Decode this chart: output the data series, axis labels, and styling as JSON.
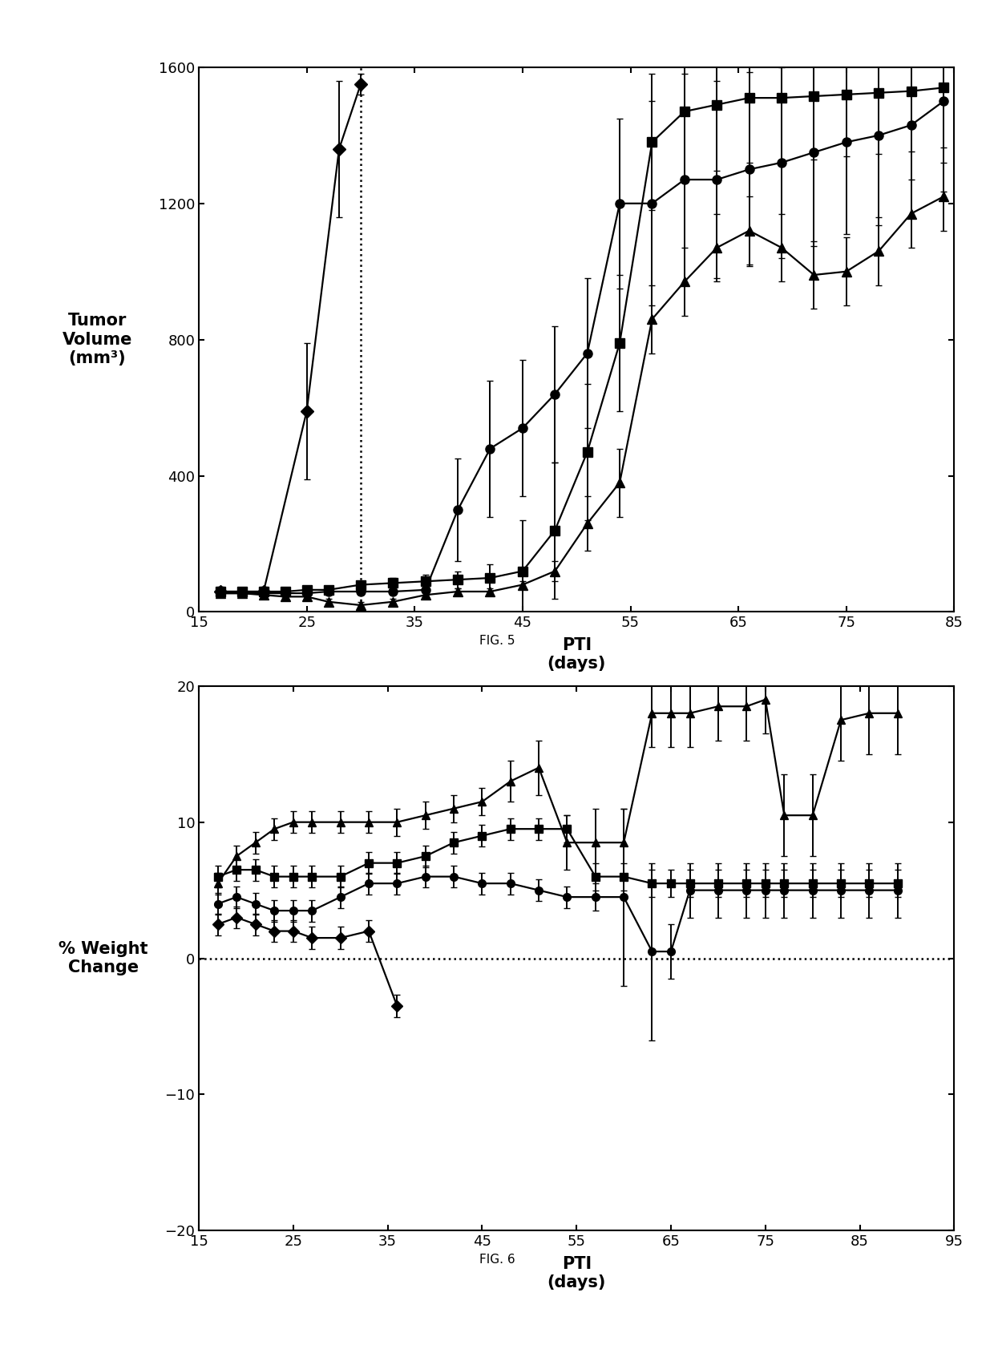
{
  "fig5": {
    "title": "FIG. 5",
    "xlabel": "PTI\n(days)",
    "ylabel": "Tumor\nVolume\n(mm³)",
    "xlim": [
      15,
      85
    ],
    "ylim": [
      0,
      1600
    ],
    "xticks": [
      15,
      25,
      35,
      45,
      55,
      65,
      75,
      85
    ],
    "yticks": [
      0,
      400,
      800,
      1200,
      1600
    ],
    "dotted_vline": 30,
    "series": {
      "diamond": {
        "x": [
          17,
          21,
          25,
          28,
          30
        ],
        "y": [
          60,
          60,
          590,
          1360,
          1550
        ],
        "yerr": [
          15,
          15,
          200,
          200,
          30
        ],
        "marker": "D",
        "ms": 8
      },
      "circle": {
        "x": [
          17,
          19,
          21,
          23,
          25,
          27,
          30,
          33,
          36,
          39,
          42,
          45,
          48,
          51,
          54,
          57,
          60,
          63,
          66,
          69,
          72,
          75,
          78,
          81,
          84
        ],
        "y": [
          55,
          55,
          55,
          55,
          55,
          60,
          60,
          60,
          65,
          300,
          480,
          540,
          640,
          760,
          1200,
          1200,
          1270,
          1270,
          1300,
          1320,
          1350,
          1380,
          1400,
          1430,
          1500
        ],
        "yerr": [
          10,
          10,
          10,
          10,
          10,
          10,
          10,
          10,
          10,
          150,
          200,
          200,
          200,
          220,
          250,
          300,
          310,
          290,
          285,
          280,
          275,
          270,
          265,
          265,
          265
        ],
        "marker": "o",
        "ms": 8
      },
      "square": {
        "x": [
          17,
          19,
          21,
          23,
          25,
          27,
          30,
          33,
          36,
          39,
          42,
          45,
          48,
          51,
          54,
          57,
          60,
          63,
          66,
          69,
          72,
          75,
          78,
          81,
          84
        ],
        "y": [
          60,
          60,
          60,
          60,
          65,
          65,
          80,
          85,
          90,
          95,
          100,
          120,
          240,
          470,
          790,
          1380,
          1470,
          1490,
          1510,
          1510,
          1515,
          1520,
          1525,
          1530,
          1540
        ],
        "yerr": [
          10,
          10,
          10,
          10,
          10,
          10,
          10,
          15,
          20,
          25,
          40,
          150,
          200,
          200,
          200,
          200,
          200,
          195,
          190,
          185,
          185,
          182,
          180,
          178,
          175
        ],
        "marker": "s",
        "ms": 8
      },
      "triangle": {
        "x": [
          17,
          19,
          21,
          23,
          25,
          27,
          30,
          33,
          36,
          39,
          42,
          45,
          48,
          51,
          54,
          57,
          60,
          63,
          66,
          69,
          72,
          75,
          78,
          81,
          84
        ],
        "y": [
          55,
          55,
          50,
          45,
          45,
          30,
          20,
          30,
          50,
          60,
          60,
          80,
          120,
          260,
          380,
          860,
          970,
          1070,
          1120,
          1070,
          990,
          1000,
          1060,
          1170,
          1220
        ],
        "yerr": [
          10,
          10,
          10,
          10,
          10,
          10,
          10,
          10,
          10,
          10,
          10,
          10,
          30,
          80,
          100,
          100,
          100,
          100,
          100,
          100,
          100,
          100,
          100,
          100,
          100
        ],
        "marker": "^",
        "ms": 8
      }
    }
  },
  "fig6": {
    "title": "FIG. 6",
    "xlabel": "PTI\n(days)",
    "ylabel": "% Weight\nChange",
    "xlim": [
      15,
      95
    ],
    "ylim": [
      -20,
      20
    ],
    "xticks": [
      15,
      25,
      35,
      45,
      55,
      65,
      75,
      85,
      95
    ],
    "yticks": [
      -20,
      -10,
      0,
      10,
      20
    ],
    "dotted_hline": 0,
    "series": {
      "diamond": {
        "x": [
          17,
          19,
          21,
          23,
          25,
          27,
          30,
          33,
          36
        ],
        "y": [
          2.5,
          3.0,
          2.5,
          2.0,
          2.0,
          1.5,
          1.5,
          2.0,
          -3.5
        ],
        "yerr": [
          0.8,
          0.8,
          0.8,
          0.8,
          0.8,
          0.8,
          0.8,
          0.8,
          0.8
        ],
        "marker": "D",
        "ms": 7
      },
      "circle": {
        "x": [
          17,
          19,
          21,
          23,
          25,
          27,
          30,
          33,
          36,
          39,
          42,
          45,
          48,
          51,
          54,
          57,
          60,
          63,
          65,
          67,
          70,
          73,
          75,
          77,
          80,
          83,
          86,
          89
        ],
        "y": [
          4.0,
          4.5,
          4.0,
          3.5,
          3.5,
          3.5,
          4.5,
          5.5,
          5.5,
          6.0,
          6.0,
          5.5,
          5.5,
          5.0,
          4.5,
          4.5,
          4.5,
          0.5,
          0.5,
          5.0,
          5.0,
          5.0,
          5.0,
          5.0,
          5.0,
          5.0,
          5.0,
          5.0
        ],
        "yerr": [
          0.8,
          0.8,
          0.8,
          0.8,
          0.8,
          0.8,
          0.8,
          0.8,
          0.8,
          0.8,
          0.8,
          0.8,
          0.8,
          0.8,
          0.8,
          1.0,
          6.5,
          6.5,
          2.0,
          2.0,
          2.0,
          2.0,
          2.0,
          2.0,
          2.0,
          2.0,
          2.0,
          2.0
        ],
        "marker": "o",
        "ms": 7
      },
      "square": {
        "x": [
          17,
          19,
          21,
          23,
          25,
          27,
          30,
          33,
          36,
          39,
          42,
          45,
          48,
          51,
          54,
          57,
          60,
          63,
          65,
          67,
          70,
          73,
          75,
          77,
          80,
          83,
          86,
          89
        ],
        "y": [
          6.0,
          6.5,
          6.5,
          6.0,
          6.0,
          6.0,
          6.0,
          7.0,
          7.0,
          7.5,
          8.5,
          9.0,
          9.5,
          9.5,
          9.5,
          6.0,
          6.0,
          5.5,
          5.5,
          5.5,
          5.5,
          5.5,
          5.5,
          5.5,
          5.5,
          5.5,
          5.5,
          5.5
        ],
        "yerr": [
          0.8,
          0.8,
          0.8,
          0.8,
          0.8,
          0.8,
          0.8,
          0.8,
          0.8,
          0.8,
          0.8,
          0.8,
          0.8,
          0.8,
          1.0,
          1.0,
          1.0,
          1.0,
          1.0,
          1.0,
          1.0,
          1.0,
          1.0,
          1.0,
          1.0,
          1.0,
          1.0,
          1.0
        ],
        "marker": "s",
        "ms": 7
      },
      "triangle": {
        "x": [
          17,
          19,
          21,
          23,
          25,
          27,
          30,
          33,
          36,
          39,
          42,
          45,
          48,
          51,
          54,
          57,
          60,
          63,
          65,
          67,
          70,
          73,
          75,
          77,
          80,
          83,
          86,
          89
        ],
        "y": [
          5.5,
          7.5,
          8.5,
          9.5,
          10.0,
          10.0,
          10.0,
          10.0,
          10.0,
          10.5,
          11.0,
          11.5,
          13.0,
          14.0,
          8.5,
          8.5,
          8.5,
          18.0,
          18.0,
          18.0,
          18.5,
          18.5,
          19.0,
          10.5,
          10.5,
          17.5,
          18.0,
          18.0
        ],
        "yerr": [
          0.8,
          0.8,
          0.8,
          0.8,
          0.8,
          0.8,
          0.8,
          0.8,
          1.0,
          1.0,
          1.0,
          1.0,
          1.5,
          2.0,
          2.0,
          2.5,
          2.5,
          2.5,
          2.5,
          2.5,
          2.5,
          2.5,
          2.5,
          3.0,
          3.0,
          3.0,
          3.0,
          3.0
        ],
        "marker": "^",
        "ms": 7
      }
    }
  },
  "line_color": "#000000",
  "marker_color": "#000000",
  "bg_color": "#ffffff",
  "tick_fontsize": 13,
  "label_fontsize": 15,
  "caption_fontsize": 11,
  "linewidth": 1.6,
  "capsize": 3,
  "elinewidth": 1.4
}
